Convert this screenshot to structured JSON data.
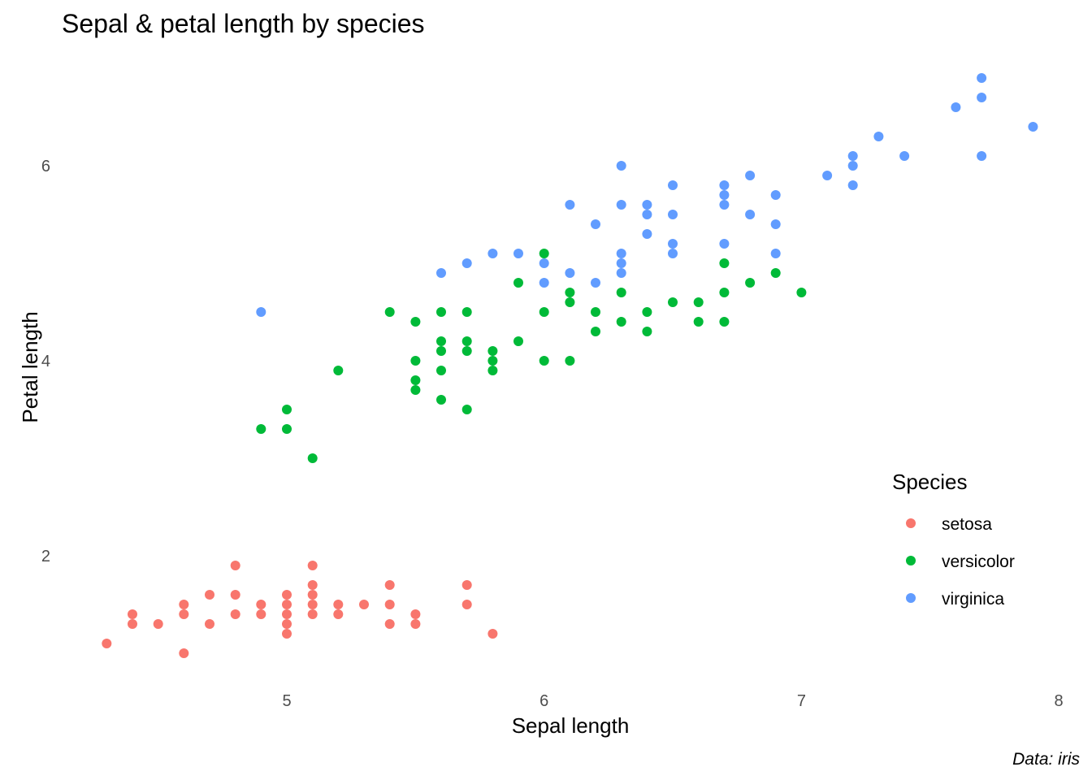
{
  "chart_data": {
    "type": "scatter",
    "title": "Sepal & petal length by species",
    "xlabel": "Sepal length",
    "ylabel": "Petal length",
    "caption": "Data: iris",
    "xlim": [
      4.15,
      8.0
    ],
    "ylim": [
      0.7,
      7.0
    ],
    "x_ticks": [
      5,
      6,
      7,
      8
    ],
    "y_ticks": [
      2,
      4,
      6
    ],
    "grid": false,
    "legend": {
      "title": "Species",
      "position": "right"
    },
    "series": [
      {
        "name": "setosa",
        "color": "#F8766D",
        "points": [
          [
            4.3,
            1.1
          ],
          [
            4.4,
            1.4
          ],
          [
            4.4,
            1.3
          ],
          [
            4.5,
            1.3
          ],
          [
            4.6,
            1.0
          ],
          [
            4.6,
            1.4
          ],
          [
            4.6,
            1.5
          ],
          [
            4.7,
            1.3
          ],
          [
            4.7,
            1.6
          ],
          [
            4.8,
            1.9
          ],
          [
            4.8,
            1.6
          ],
          [
            4.8,
            1.4
          ],
          [
            4.9,
            1.5
          ],
          [
            4.9,
            1.4
          ],
          [
            5.0,
            1.6
          ],
          [
            5.0,
            1.5
          ],
          [
            5.0,
            1.4
          ],
          [
            5.0,
            1.3
          ],
          [
            5.0,
            1.2
          ],
          [
            5.1,
            1.9
          ],
          [
            5.1,
            1.7
          ],
          [
            5.1,
            1.6
          ],
          [
            5.1,
            1.5
          ],
          [
            5.1,
            1.4
          ],
          [
            5.2,
            1.5
          ],
          [
            5.2,
            1.4
          ],
          [
            5.3,
            1.5
          ],
          [
            5.4,
            1.7
          ],
          [
            5.4,
            1.5
          ],
          [
            5.4,
            1.3
          ],
          [
            5.5,
            1.4
          ],
          [
            5.5,
            1.3
          ],
          [
            5.7,
            1.7
          ],
          [
            5.7,
            1.5
          ],
          [
            5.8,
            1.2
          ]
        ]
      },
      {
        "name": "versicolor",
        "color": "#00BA38",
        "points": [
          [
            4.9,
            3.3
          ],
          [
            5.0,
            3.5
          ],
          [
            5.0,
            3.3
          ],
          [
            5.1,
            3.0
          ],
          [
            5.2,
            3.9
          ],
          [
            5.4,
            4.5
          ],
          [
            5.5,
            4.4
          ],
          [
            5.5,
            4.0
          ],
          [
            5.5,
            3.8
          ],
          [
            5.5,
            3.7
          ],
          [
            5.6,
            4.5
          ],
          [
            5.6,
            4.2
          ],
          [
            5.6,
            4.1
          ],
          [
            5.6,
            3.9
          ],
          [
            5.6,
            3.6
          ],
          [
            5.7,
            4.5
          ],
          [
            5.7,
            4.2
          ],
          [
            5.7,
            4.1
          ],
          [
            5.7,
            3.5
          ],
          [
            5.8,
            4.1
          ],
          [
            5.8,
            4.0
          ],
          [
            5.8,
            3.9
          ],
          [
            5.9,
            4.8
          ],
          [
            5.9,
            4.2
          ],
          [
            6.0,
            5.1
          ],
          [
            6.0,
            4.5
          ],
          [
            6.0,
            4.0
          ],
          [
            6.1,
            4.7
          ],
          [
            6.1,
            4.6
          ],
          [
            6.1,
            4.0
          ],
          [
            6.2,
            4.5
          ],
          [
            6.2,
            4.3
          ],
          [
            6.3,
            4.7
          ],
          [
            6.3,
            4.4
          ],
          [
            6.4,
            4.5
          ],
          [
            6.4,
            4.3
          ],
          [
            6.5,
            4.6
          ],
          [
            6.6,
            4.6
          ],
          [
            6.6,
            4.4
          ],
          [
            6.7,
            5.0
          ],
          [
            6.7,
            4.7
          ],
          [
            6.7,
            4.4
          ],
          [
            6.8,
            4.8
          ],
          [
            6.9,
            4.9
          ],
          [
            7.0,
            4.7
          ]
        ]
      },
      {
        "name": "virginica",
        "color": "#619CFF",
        "points": [
          [
            4.9,
            4.5
          ],
          [
            5.6,
            4.9
          ],
          [
            5.7,
            5.0
          ],
          [
            5.8,
            5.1
          ],
          [
            5.9,
            5.1
          ],
          [
            6.0,
            5.0
          ],
          [
            6.0,
            4.8
          ],
          [
            6.1,
            5.6
          ],
          [
            6.1,
            4.9
          ],
          [
            6.2,
            5.4
          ],
          [
            6.2,
            4.8
          ],
          [
            6.3,
            6.0
          ],
          [
            6.3,
            5.6
          ],
          [
            6.3,
            5.1
          ],
          [
            6.3,
            5.0
          ],
          [
            6.3,
            4.9
          ],
          [
            6.4,
            5.6
          ],
          [
            6.4,
            5.5
          ],
          [
            6.4,
            5.3
          ],
          [
            6.5,
            5.8
          ],
          [
            6.5,
            5.5
          ],
          [
            6.5,
            5.2
          ],
          [
            6.5,
            5.1
          ],
          [
            6.7,
            5.8
          ],
          [
            6.7,
            5.7
          ],
          [
            6.7,
            5.6
          ],
          [
            6.7,
            5.2
          ],
          [
            6.8,
            5.9
          ],
          [
            6.8,
            5.5
          ],
          [
            6.9,
            5.7
          ],
          [
            6.9,
            5.4
          ],
          [
            6.9,
            5.1
          ],
          [
            7.1,
            5.9
          ],
          [
            7.2,
            6.1
          ],
          [
            7.2,
            6.0
          ],
          [
            7.2,
            5.8
          ],
          [
            7.3,
            6.3
          ],
          [
            7.4,
            6.1
          ],
          [
            7.6,
            6.6
          ],
          [
            7.7,
            6.9
          ],
          [
            7.7,
            6.7
          ],
          [
            7.7,
            6.1
          ],
          [
            7.9,
            6.4
          ]
        ]
      }
    ]
  }
}
